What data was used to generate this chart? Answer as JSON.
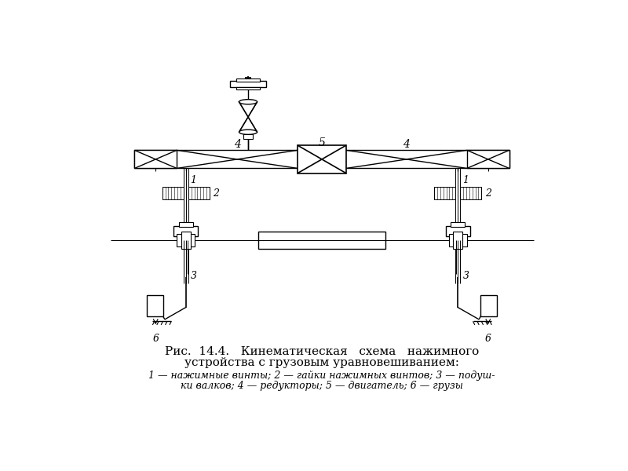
{
  "title_line1": "Рис.  14.4.   Кинематическая   схема   нажимного",
  "title_line2": "устройства с грузовым уравновешиванием:",
  "legend_line1": "1 — нажимные винты; 2 — гайки нажимных винтов; 3 — подуш-",
  "legend_line2": "ки валков; 4 — редукторы; 5 — двигатель; 6 — грузы",
  "bg_color": "#ffffff",
  "line_color": "#000000",
  "fig_width": 8.0,
  "fig_height": 6.0,
  "lw": 1.0
}
